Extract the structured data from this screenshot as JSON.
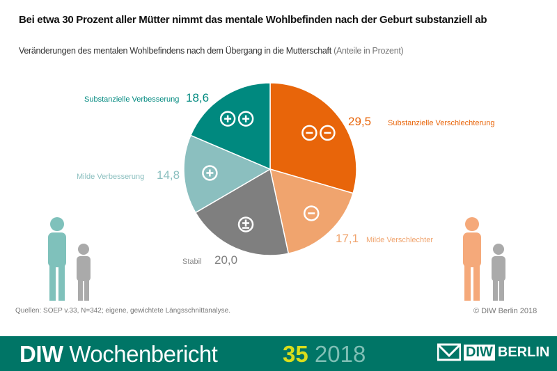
{
  "title": "Bei etwa 30 Prozent aller Mütter nimmt das mentale Wohlbefinden nach der Geburt substanziell ab",
  "subtitle": "Veränderungen des mentalen Wohlbefindens nach dem Übergang in die Mutterschaft",
  "unit": "(Anteile in Prozent)",
  "chart_data": {
    "type": "pie",
    "slices": [
      {
        "label": "Substanzielle Verschlechterung",
        "value": 29.5,
        "display": "29,5",
        "color": "#e8650a",
        "symbol": "⊖⊖"
      },
      {
        "label": "Milde Verschlechter",
        "value": 17.1,
        "display": "17,1",
        "color": "#f0a46e",
        "symbol": "⊖"
      },
      {
        "label": "Stabil",
        "value": 20.0,
        "display": "20,0",
        "color": "#7f7f7f",
        "symbol": "±"
      },
      {
        "label": "Milde Verbesserung",
        "value": 14.8,
        "display": "14,8",
        "color": "#8bbfbf",
        "symbol": "⊕"
      },
      {
        "label": "Substanzielle Verbesserung",
        "value": 18.6,
        "display": "18,6",
        "color": "#00897f",
        "symbol": "⊕⊕"
      }
    ]
  },
  "source": "Quellen: SOEP v.33, N=342; eigene, gewichtete  Längsschnittanalyse.",
  "copyright": "© DIW Berlin 2018",
  "footer": {
    "brand_bold": "DIW",
    "brand": "Wochenbericht",
    "issue": "35",
    "year": "2018",
    "logo_box": "DIW",
    "logo_text": "BERLIN"
  }
}
